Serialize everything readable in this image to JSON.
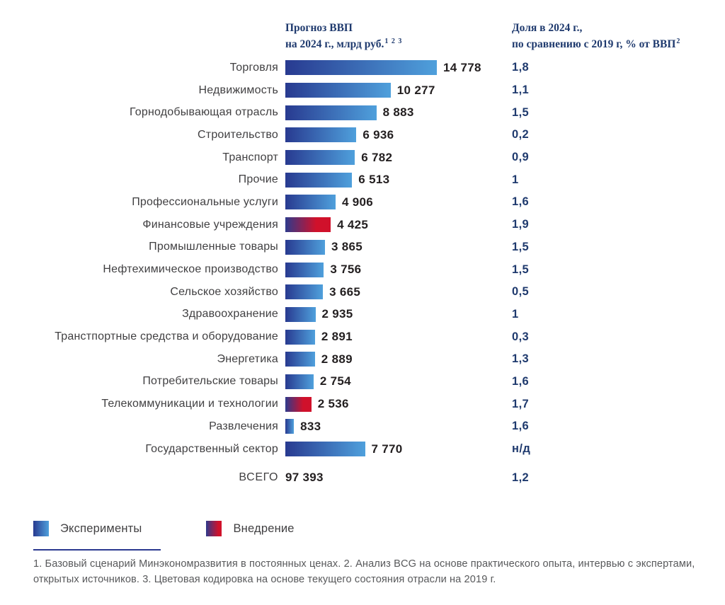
{
  "chart_data": {
    "type": "bar",
    "orientation": "horizontal",
    "headers": {
      "forecast": {
        "line1": "Прогноз ВВП",
        "line2": "на 2024 г., млрд руб.",
        "sup": "1 2 3"
      },
      "share": {
        "line1": "Доля в 2024 г.,",
        "line2": "по сравнению с 2019 г, % от ВВП",
        "sup": "2"
      }
    },
    "max_value": 14778,
    "rows": [
      {
        "label": "Торговля",
        "value": 14778,
        "value_text": "14 778",
        "share": "1,8",
        "type": "experiments"
      },
      {
        "label": "Недвижимость",
        "value": 10277,
        "value_text": "10 277",
        "share": "1,1",
        "type": "experiments"
      },
      {
        "label": "Горнодобывающая отрасль",
        "value": 8883,
        "value_text": "8 883",
        "share": "1,5",
        "type": "experiments"
      },
      {
        "label": "Строительство",
        "value": 6936,
        "value_text": "6 936",
        "share": "0,2",
        "type": "experiments"
      },
      {
        "label": "Транспорт",
        "value": 6782,
        "value_text": "6 782",
        "share": "0,9",
        "type": "experiments"
      },
      {
        "label": "Прочие",
        "value": 6513,
        "value_text": "6 513",
        "share": "1",
        "type": "experiments"
      },
      {
        "label": "Профессиональные услуги",
        "value": 4906,
        "value_text": "4 906",
        "share": "1,6",
        "type": "experiments"
      },
      {
        "label": "Финансовые учреждения",
        "value": 4425,
        "value_text": "4 425",
        "share": "1,9",
        "type": "implementation"
      },
      {
        "label": "Промышленные товары",
        "value": 3865,
        "value_text": "3 865",
        "share": "1,5",
        "type": "experiments"
      },
      {
        "label": "Нефтехимическое производство",
        "value": 3756,
        "value_text": "3 756",
        "share": "1,5",
        "type": "experiments"
      },
      {
        "label": "Сельское хозяйство",
        "value": 3665,
        "value_text": "3 665",
        "share": "0,5",
        "type": "experiments"
      },
      {
        "label": "Здравоохранение",
        "value": 2935,
        "value_text": "2 935",
        "share": "1",
        "type": "experiments"
      },
      {
        "label": "Транстпортные средства и оборудование",
        "value": 2891,
        "value_text": "2 891",
        "share": "0,3",
        "type": "experiments"
      },
      {
        "label": "Энергетика",
        "value": 2889,
        "value_text": "2 889",
        "share": "1,3",
        "type": "experiments"
      },
      {
        "label": "Потребительские товары",
        "value": 2754,
        "value_text": "2 754",
        "share": "1,6",
        "type": "experiments"
      },
      {
        "label": "Телекоммуникации и технологии",
        "value": 2536,
        "value_text": "2 536",
        "share": "1,7",
        "type": "implementation"
      },
      {
        "label": "Развлечения",
        "value": 833,
        "value_text": "833",
        "share": "1,6",
        "type": "experiments"
      },
      {
        "label": "Государственный сектор",
        "value": 7770,
        "value_text": "7 770",
        "share": "н/д",
        "type": "experiments"
      }
    ],
    "total": {
      "label": "ВСЕГО",
      "value_text": "97 393",
      "share": "1,2"
    },
    "legend": [
      {
        "label": "Эксперименты",
        "type": "experiments"
      },
      {
        "label": "Внедрение",
        "type": "implementation"
      }
    ],
    "footnotes": "1. Базовый сценарий Минэкономразвития в постоянных ценах. 2. Анализ BCG на основе практического опыта, интервью с экспертами, открытых источников. 3. Цветовая кодировка на основе текущего состояния отрасли  на 2019 г.",
    "colors": {
      "navy_text": "#1f3a6e",
      "bar_blue_start": "#283a90",
      "bar_blue_end": "#4fa0dc",
      "bar_red_start": "#2e3a8c",
      "bar_red_end": "#d0112b",
      "label_gray": "#414042",
      "value_black": "#231f20",
      "footnote_gray": "#58595b"
    }
  }
}
